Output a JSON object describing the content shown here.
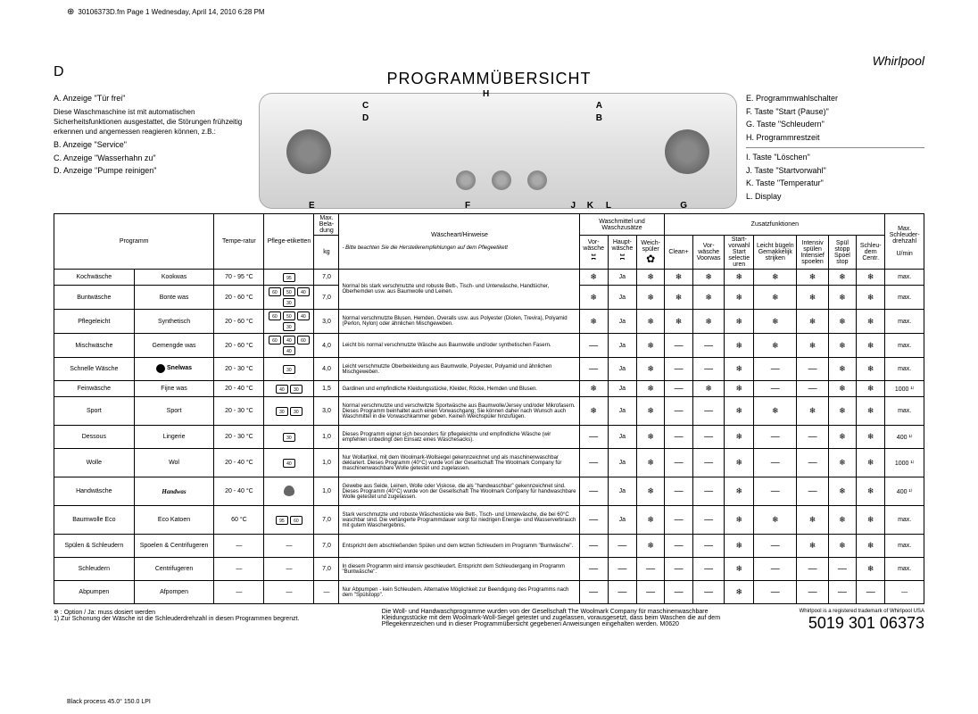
{
  "header": {
    "fileinfo": "30106373D.fm Page 1 Wednesday, April 14, 2010 6:28 PM",
    "pageLetter": "D",
    "title": "PROGRAMMÜBERSICHT",
    "logo": "Whirlpool"
  },
  "leftLegend": {
    "a": "A. Anzeige \"Tür frei\"",
    "desc": "Diese Waschmaschine ist mit automatischen Sicherheitsfunktionen ausgestattet, die Störungen frühzeitig erkennen und angemessen reagieren können, z.B.:",
    "b": "B. Anzeige \"Service\"",
    "c": "C. Anzeige \"Wasserhahn zu\"",
    "d": "D. Anzeige \"Pumpe reinigen\""
  },
  "rightLegend": {
    "e": "E. Programmwahlschalter",
    "f": "F. Taste \"Start (Pause)\"",
    "g": "G. Taste \"Schleudern\"",
    "h": "H. Programmrestzeit",
    "i": "I. Taste \"Löschen\"",
    "j": "J. Taste \"Startvorwahl\"",
    "k": "K. Taste \"Temperatur\"",
    "l": "L. Display"
  },
  "panelLabels": {
    "A": "A",
    "B": "B",
    "C": "C",
    "D": "D",
    "E": "E",
    "F": "F",
    "G": "G",
    "H": "H",
    "I": "I",
    "J": "J",
    "K": "K",
    "L": "L"
  },
  "tableHeaders": {
    "programm": "Programm",
    "temperatur": "Tempe-ratur",
    "pflege": "Pflege-etiketten",
    "beladung": "Max. Bela-dung",
    "beladungUnit": "kg",
    "waescheart": "Wäscheart/Hinweise",
    "waescheNote": "- Bitte beachten Sie die Herstellerempfehlungen auf dem Pflegeetikett",
    "waschmittel": "Waschmittel und Waschzusätze",
    "vorwaesche": "Vor-wäsche",
    "hauptwaesche": "Haupt-wäsche",
    "weichspueler": "Weich-spüler",
    "zusatz": "Zusatzfunktionen",
    "clean": "Clean+",
    "vorwaescheVW": "Vor-wäsche Voorwas",
    "startvorwahl": "Start-vorwahl Start selectie uren",
    "leichtbuegeln": "Leicht bügeln Gemakkelijk strijken",
    "intensivspuelen": "Intensiv spülen Intensief spoelen",
    "spuelstopp": "Spül stopp Spoel stop",
    "schleudern": "Schleu-dern Centr.",
    "maxdrehzahl": "Max. Schleuder-drehzahl",
    "umin": "U/min"
  },
  "rows": [
    {
      "p1": "Kochwäsche",
      "p2": "Kookwas",
      "temp": "70 - 95 °C",
      "care": [
        "95"
      ],
      "load": "7,0",
      "hint": "",
      "vw": "❄",
      "hw": "Ja",
      "ws": "❄",
      "c": "❄",
      "z1": "❄",
      "z2": "❄",
      "z3": "❄",
      "z4": "❄",
      "z5": "❄",
      "z6": "❄",
      "rpm": "max."
    },
    {
      "p1": "Buntwäsche",
      "p2": "Bonte was",
      "temp": "20 - 60 °C",
      "care": [
        "60",
        "50",
        "40",
        "30"
      ],
      "load": "7,0",
      "hint": "Normal bis stark verschmutzte und robuste Bett-, Tisch- und Unterwäsche, Handtücher, Oberhemden usw. aus Baumwolle und Leinen.",
      "vw": "❄",
      "hw": "Ja",
      "ws": "❄",
      "c": "❄",
      "z1": "❄",
      "z2": "❄",
      "z3": "❄",
      "z4": "❄",
      "z5": "❄",
      "z6": "❄",
      "rpm": "max."
    },
    {
      "p1": "Pflegeleicht",
      "p2": "Synthetisch",
      "temp": "20 - 60 °C",
      "care": [
        "60",
        "50",
        "40",
        "30"
      ],
      "load": "3,0",
      "hint": "Normal verschmutzte Blusen, Hemden, Overalls usw. aus Polyester (Diolen, Trevira), Polyamid (Perlon, Nylon) oder ähnlichen Mischgeweben.",
      "vw": "❄",
      "hw": "Ja",
      "ws": "❄",
      "c": "❄",
      "z1": "❄",
      "z2": "❄",
      "z3": "❄",
      "z4": "❄",
      "z5": "❄",
      "z6": "❄",
      "rpm": "max."
    },
    {
      "p1": "Mischwäsche",
      "p2": "Gemengde was",
      "temp": "20 - 60 °C",
      "care": [
        "60",
        "40",
        "60",
        "40"
      ],
      "load": "4,0",
      "hint": "Leicht bis normal verschmutzte Wäsche aus Baumwolle und/oder synthetischen Fasern.",
      "vw": "—",
      "hw": "Ja",
      "ws": "❄",
      "c": "—",
      "z1": "—",
      "z2": "❄",
      "z3": "❄",
      "z4": "❄",
      "z5": "❄",
      "z6": "❄",
      "rpm": "max."
    },
    {
      "p1": "Schnelle Wäsche",
      "p2": "Snelwas",
      "temp": "20 - 30 °C",
      "care": [
        "30"
      ],
      "load": "4,0",
      "hint": "Leicht verschmutzte Oberbekleidung aus Baumwolle, Polyester, Polyamid und ähnlichen Mischgeweben.",
      "vw": "—",
      "hw": "Ja",
      "ws": "❄",
      "c": "—",
      "z1": "—",
      "z2": "❄",
      "z3": "—",
      "z4": "—",
      "z5": "❄",
      "z6": "❄",
      "rpm": "max."
    },
    {
      "p1": "Feinwäsche",
      "p2": "Fijne was",
      "temp": "20 - 40 °C",
      "care": [
        "40",
        "30"
      ],
      "load": "1,5",
      "hint": "Gardinen und empfindliche Kleidungsstücke, Kleider, Röcke, Hemden und Blusen.",
      "vw": "❄",
      "hw": "Ja",
      "ws": "❄",
      "c": "—",
      "z1": "❄",
      "z2": "❄",
      "z3": "—",
      "z4": "—",
      "z5": "❄",
      "z6": "❄",
      "rpm": "1000 ¹⁾"
    },
    {
      "p1": "Sport",
      "p2": "Sport",
      "temp": "20 - 30 °C",
      "care": [
        "30",
        "30"
      ],
      "load": "3,0",
      "hint": "Normal verschmutzte und verschwitzte Sportwäsche aus Baumwolle/Jersey und/oder Mikrofasern. Dieses Programm beinhaltet auch einen Vorwaschgang; Sie können daher nach Wunsch auch Waschmittel in die Vorwaschkammer geben. Keinen Weichspüler hinzufügen.",
      "vw": "❄",
      "hw": "Ja",
      "ws": "❄",
      "c": "—",
      "z1": "—",
      "z2": "❄",
      "z3": "❄",
      "z4": "❄",
      "z5": "❄",
      "z6": "❄",
      "rpm": "max."
    },
    {
      "p1": "Dessous",
      "p2": "Lingerie",
      "temp": "20 - 30 °C",
      "care": [
        "30"
      ],
      "load": "1,0",
      "hint": "Dieses Programm eignet sich besonders für pflegeleichte und empfindliche Wäsche (wir empfehlen unbedingt den Einsatz eines Wäschesacks).",
      "vw": "—",
      "hw": "Ja",
      "ws": "❄",
      "c": "—",
      "z1": "—",
      "z2": "❄",
      "z3": "—",
      "z4": "—",
      "z5": "❄",
      "z6": "❄",
      "rpm": "400 ¹⁾"
    },
    {
      "p1": "Wolle",
      "p2": "Wol",
      "temp": "20 - 40 °C",
      "care": [
        "40"
      ],
      "load": "1,0",
      "hint": "Nur Wollartikel, mit dem Woolmark-Wollsiegel gekennzeichnet und als maschinenwaschbar deklariert. Dieses Programm (40°C) wurde von der Gesellschaft The Woolmark Company für maschinenwaschbare Wolle getestet und zugelassen.",
      "vw": "—",
      "hw": "Ja",
      "ws": "❄",
      "c": "—",
      "z1": "—",
      "z2": "❄",
      "z3": "—",
      "z4": "—",
      "z5": "❄",
      "z6": "❄",
      "rpm": "1000 ¹⁾"
    },
    {
      "p1": "Handwäsche",
      "p2": "Handwas",
      "temp": "20 - 40 °C",
      "care": [],
      "load": "1,0",
      "hint": "Gewebe aus Seide, Leinen, Wolle oder Viskose, die als \"handwaschbar\" gekennzeichnet sind. Dieses Programm (40°C) wurde von der Gesellschaft The Woolmark Company für handwaschbare Wolle getestet und zugelassen.",
      "vw": "—",
      "hw": "Ja",
      "ws": "❄",
      "c": "—",
      "z1": "—",
      "z2": "❄",
      "z3": "—",
      "z4": "—",
      "z5": "❄",
      "z6": "❄",
      "rpm": "400 ¹⁾"
    },
    {
      "p1": "Baumwolle Eco",
      "p2": "Eco Katoen",
      "temp": "60 °C",
      "care": [
        "95",
        "60"
      ],
      "load": "7,0",
      "hint": "Stark verschmutzte und robuste Wäschestücke wie Bett-, Tisch- und Unterwäsche, die bei 60°C waschbar sind. Die verlängerte Programmdauer sorgt für niedrigen Energie- und Wasserverbrauch mit gutem Waschergebnis.",
      "vw": "—",
      "hw": "Ja",
      "ws": "❄",
      "c": "—",
      "z1": "—",
      "z2": "❄",
      "z3": "❄",
      "z4": "❄",
      "z5": "❄",
      "z6": "❄",
      "rpm": "max."
    },
    {
      "p1": "Spülen & Schleudern",
      "p2": "Spoelen & Centrifugeren",
      "temp": "—",
      "care": [],
      "load": "7,0",
      "hint": "Entspricht dem abschließenden Spülen und dem letzten Schleudern im Programm \"Buntwäsche\".",
      "vw": "—",
      "hw": "—",
      "ws": "❄",
      "c": "—",
      "z1": "—",
      "z2": "❄",
      "z3": "—",
      "z4": "❄",
      "z5": "❄",
      "z6": "❄",
      "rpm": "max."
    },
    {
      "p1": "Schleudern",
      "p2": "Centrifugeren",
      "temp": "—",
      "care": [],
      "load": "7,0",
      "hint": "In diesem Programm wird intensiv geschleudert. Entspricht dem Schleudergang im Programm \"Buntwäsche\".",
      "vw": "—",
      "hw": "—",
      "ws": "—",
      "c": "—",
      "z1": "—",
      "z2": "❄",
      "z3": "—",
      "z4": "—",
      "z5": "—",
      "z6": "❄",
      "rpm": "max."
    },
    {
      "p1": "Abpumpen",
      "p2": "Afpompen",
      "temp": "—",
      "care": [],
      "load": "—",
      "hint": "Nur Abpumpen - kein Schleudern. Alternative Möglichkeit zur Beendigung des Programms nach dem \"Spülstopp\".",
      "vw": "—",
      "hw": "—",
      "ws": "—",
      "c": "—",
      "z1": "—",
      "z2": "❄",
      "z3": "—",
      "z4": "—",
      "z5": "—",
      "z6": "—",
      "rpm": "—"
    }
  ],
  "footer": {
    "left1": "❄ : Option / Ja: muss dosiert werden",
    "left2": "1) Zur Schonung der Wäsche ist die Schleuderdrehzahl in diesen Programmen begrenzt.",
    "mid": "Die Woll- und Handwaschprogramme wurden von der Gesellschaft The Woolmark Company für maschinenwaschbare Kleidungsstücke mit dem Woolmark-Woll-Siegel getestet und zugelassen, vorausgesetzt, dass beim Waschen die auf dem Pflegekennzeichen und in dieser Programmübersicht gegebenen Anweisungen eingehalten werden. M0620",
    "trademark": "Whirlpool is a registered trademark of Whirlpool USA",
    "docnum": "5019 301 06373",
    "bottom": "Black process 45.0° 150.0 LPI"
  }
}
